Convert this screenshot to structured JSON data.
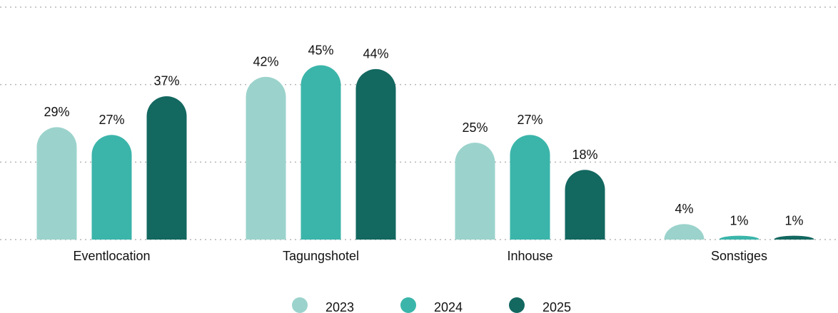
{
  "chart_data": {
    "type": "bar",
    "categories": [
      "Eventlocation",
      "Tagungshotel",
      "Inhouse",
      "Sonstiges"
    ],
    "series": [
      {
        "name": "2023",
        "color": "#9bd3cc",
        "values": [
          29,
          42,
          25,
          4
        ],
        "value_labels": [
          "29%",
          "42%",
          "25%",
          "4%"
        ]
      },
      {
        "name": "2024",
        "color": "#3bb5aa",
        "values": [
          27,
          45,
          27,
          1
        ],
        "value_labels": [
          "27%",
          "45%",
          "27%",
          "1%"
        ]
      },
      {
        "name": "2025",
        "color": "#136860",
        "values": [
          37,
          44,
          18,
          1
        ],
        "value_labels": [
          "37%",
          "44%",
          "18%",
          "1%"
        ]
      }
    ],
    "ylim": [
      0,
      60
    ],
    "yticks": [
      0,
      20,
      40,
      60
    ],
    "grid": true,
    "legend": "bottom"
  }
}
